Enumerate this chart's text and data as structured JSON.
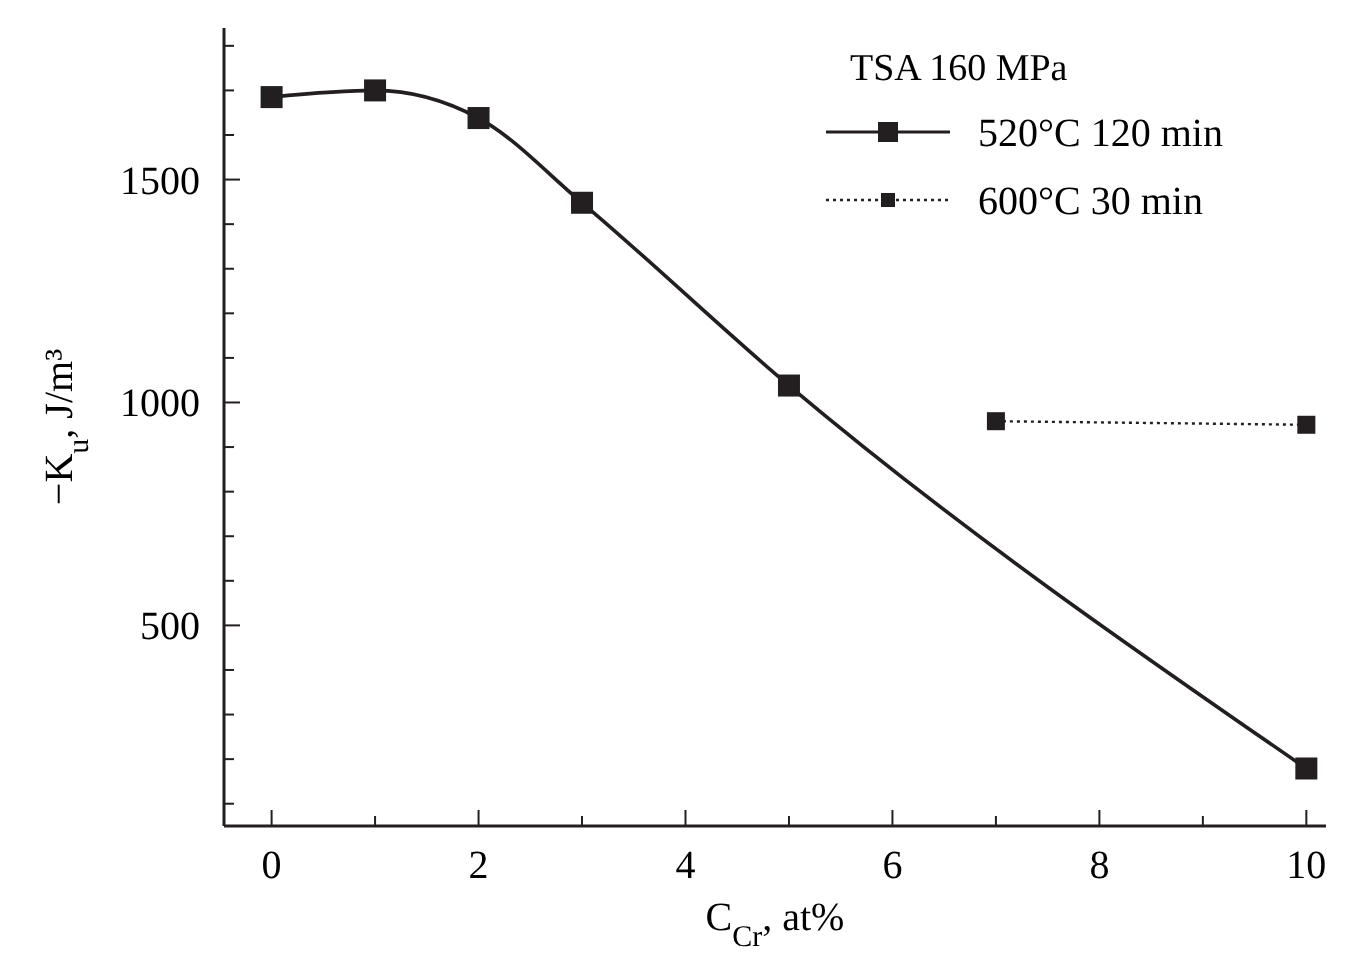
{
  "chart_data": {
    "type": "line",
    "xlabel": "C$_{Cr}$, at%",
    "ylabel": "−K$_{u}$, J/m³",
    "legend_title": "TSA 160 MPa",
    "legend": "top right",
    "marker": "square",
    "grid": false,
    "xlim": [
      -0.46,
      10.19
    ],
    "xticks": [
      0,
      {
        "value": 1,
        "label": null
      },
      2,
      {
        "value": 3,
        "label": null
      },
      4,
      {
        "value": 5,
        "label": null
      },
      6,
      {
        "value": 7,
        "label": null
      },
      8,
      {
        "value": 9,
        "label": null
      },
      10
    ],
    "ylim": [
      50,
      1840
    ],
    "yticks": [
      {
        "value": 100,
        "label": null
      },
      {
        "value": 200,
        "label": null
      },
      {
        "value": 300,
        "label": null
      },
      {
        "value": 400,
        "label": null
      },
      500,
      {
        "value": 600,
        "label": null
      },
      {
        "value": 700,
        "label": null
      },
      {
        "value": 800,
        "label": null
      },
      {
        "value": 900,
        "label": null
      },
      1000,
      {
        "value": 1100,
        "label": null
      },
      {
        "value": 1200,
        "label": null
      },
      {
        "value": 1300,
        "label": null
      },
      {
        "value": 1400,
        "label": null
      },
      1500,
      {
        "value": 1600,
        "label": null
      },
      {
        "value": 1700,
        "label": null
      },
      {
        "value": 1800,
        "label": null
      }
    ],
    "series": [
      {
        "name": "520°C 120 min",
        "color": "#231f20",
        "line_style": "solid",
        "x": [
          0,
          1,
          2,
          3,
          5,
          10
        ],
        "values": [
          1685,
          1700,
          1638,
          1448,
          1038,
          179
        ]
      },
      {
        "name": "600°C 30 min",
        "color": "#231f20",
        "line_style": "dotted",
        "x": [
          7,
          10
        ],
        "values": [
          958,
          950
        ]
      }
    ]
  }
}
